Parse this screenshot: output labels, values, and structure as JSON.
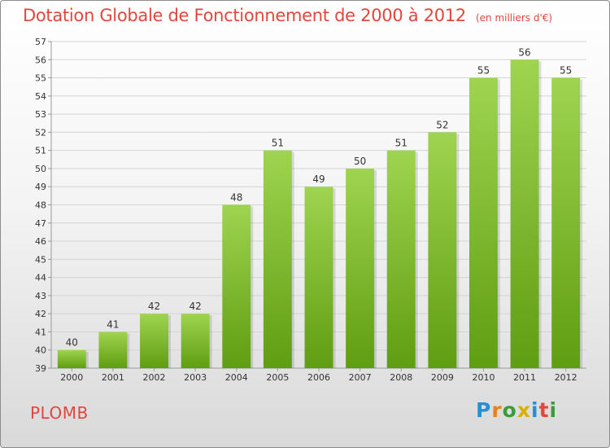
{
  "header": {
    "title": "Dotation Globale de Fonctionnement de 2000 à 2012",
    "unit_note": "(en milliers d'€)"
  },
  "footer": {
    "commune": "PLOMB",
    "brand": "Proxiti",
    "brand_letters": [
      "P",
      "r",
      "o",
      "x",
      "i",
      "t",
      "i"
    ],
    "brand_colors": [
      "#2a8fd0",
      "#e8821e",
      "#3a9b3a",
      "#d8b000",
      "#2a8fd0",
      "#e0483d",
      "#3a9b3a"
    ]
  },
  "chart_data": {
    "type": "bar",
    "categories": [
      "2000",
      "2001",
      "2002",
      "2003",
      "2004",
      "2005",
      "2006",
      "2007",
      "2008",
      "2009",
      "2010",
      "2011",
      "2012"
    ],
    "values": [
      40,
      41,
      42,
      42,
      48,
      51,
      49,
      50,
      51,
      52,
      55,
      56,
      55
    ],
    "yticks": [
      39,
      40,
      41,
      42,
      43,
      44,
      45,
      46,
      47,
      48,
      49,
      50,
      51,
      52,
      53,
      54,
      55,
      56,
      57
    ],
    "ylim": [
      39,
      57
    ],
    "grid": true,
    "colors": {
      "bar_top": "#9fd450",
      "bar_bottom": "#5f9d12",
      "grid": "#d4d4d4",
      "axis": "#9a9a9a",
      "text": "#333333"
    }
  }
}
